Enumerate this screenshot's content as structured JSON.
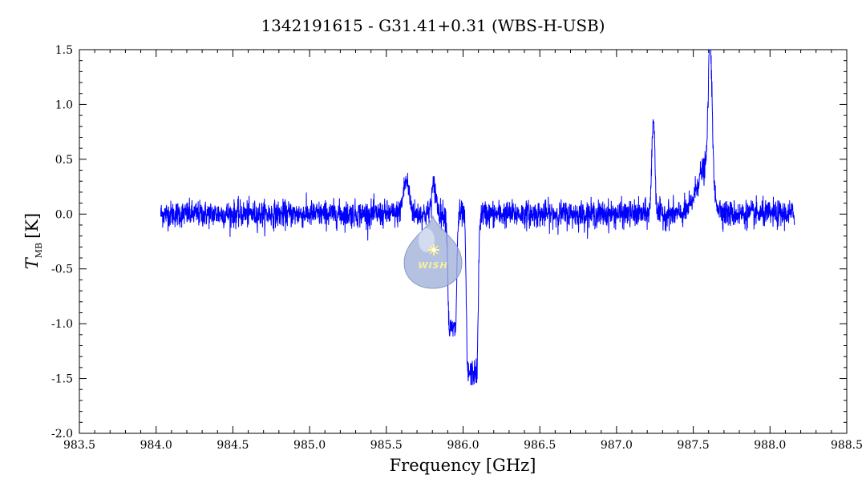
{
  "chart_data": {
    "type": "line",
    "title": "1342191615 - G31.41+0.31 (WBS-H-USB)",
    "xlabel": "Frequency [GHz]",
    "ylabel_main": "T",
    "ylabel_sub": "MB",
    "ylabel_unit": "[K]",
    "xlim": [
      983.5,
      988.5
    ],
    "ylim": [
      -2.0,
      1.5
    ],
    "xticks": [
      "983.5",
      "984.0",
      "984.5",
      "985.0",
      "985.5",
      "986.0",
      "986.5",
      "987.0",
      "987.5",
      "988.0",
      "988.5"
    ],
    "yticks": [
      "1.5",
      "1.0",
      "0.5",
      "0.0",
      "-0.5",
      "-1.0",
      "-1.5",
      "-2.0"
    ],
    "grid": false,
    "series": [
      {
        "color": "#0000ff",
        "noise_sigma": 0.06,
        "x_range": [
          984.03,
          988.16
        ],
        "features": [
          {
            "type": "emission",
            "center": 985.63,
            "peak": 0.3,
            "width": 0.02
          },
          {
            "type": "emission",
            "center": 985.81,
            "peak": 0.25,
            "width": 0.015
          },
          {
            "type": "absorption",
            "center": 985.93,
            "depth": -1.05,
            "width_range": [
              985.91,
              985.95
            ]
          },
          {
            "type": "absorption",
            "center": 986.05,
            "depth": -1.45,
            "width_range": [
              986.03,
              986.09
            ]
          },
          {
            "type": "emission",
            "center": 987.24,
            "peak": 0.88,
            "width": 0.01
          },
          {
            "type": "emission",
            "center": 987.61,
            "peak": 1.35,
            "width": 0.012
          },
          {
            "type": "emission_wing",
            "center": 987.57,
            "peak": 0.4,
            "width": 0.05
          }
        ]
      }
    ]
  },
  "logo": {
    "text": "WISH",
    "colors": {
      "drop": "#9fb0d8",
      "highlight": "#e8ecf8",
      "star": "#fff58a"
    }
  }
}
